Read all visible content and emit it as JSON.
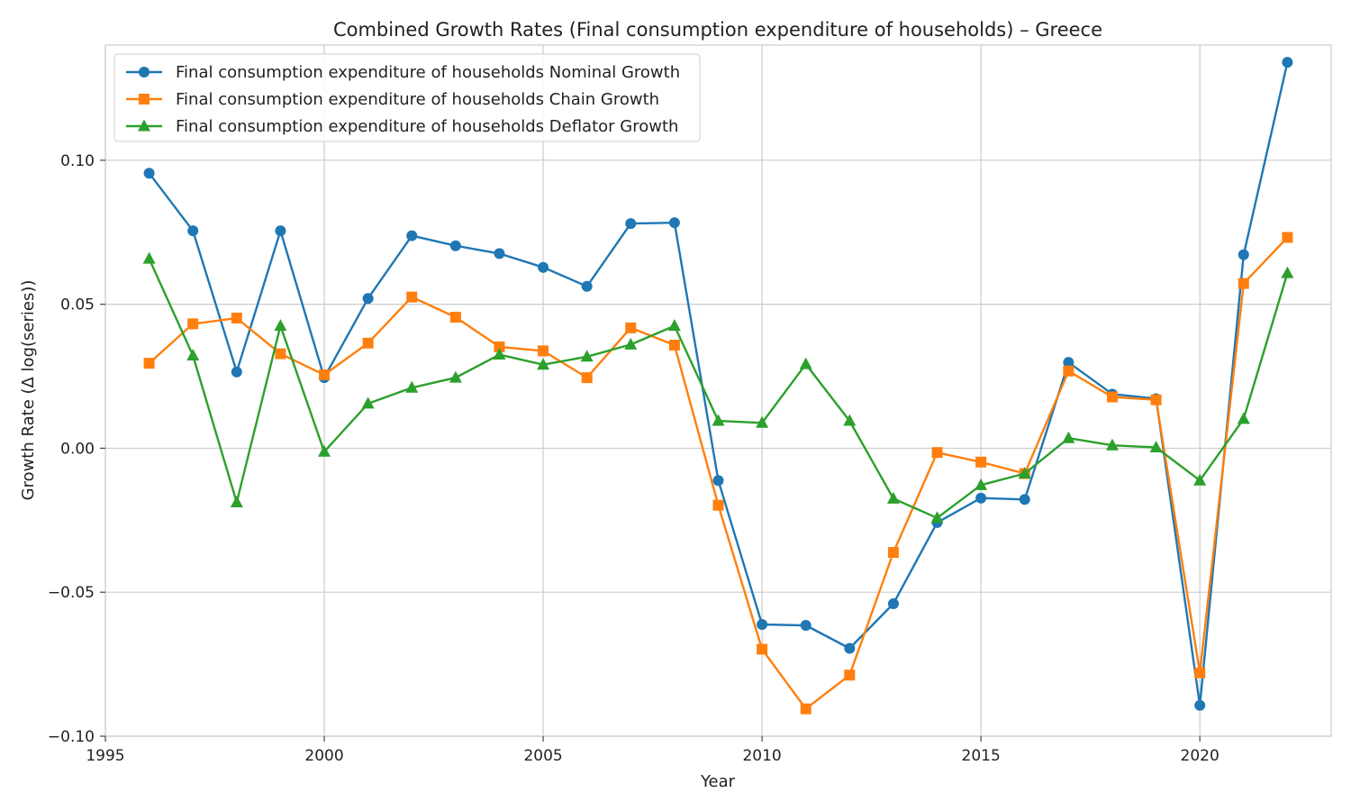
{
  "chart_data": {
    "type": "line",
    "title": "Combined Growth Rates (Final consumption expenditure of households) – Greece",
    "xlabel": "Year",
    "ylabel": "Growth Rate (Δ log(series))",
    "xlim": [
      1995,
      2023
    ],
    "ylim": [
      -0.1,
      0.14
    ],
    "grid": true,
    "legend_position": "top-left",
    "x_ticks": [
      1995,
      2000,
      2005,
      2010,
      2015,
      2020
    ],
    "x_tick_labels": [
      "1995",
      "2000",
      "2005",
      "2010",
      "2015",
      "2020"
    ],
    "y_ticks": [
      -0.1,
      -0.05,
      0.0,
      0.05,
      0.1
    ],
    "y_tick_labels": [
      "−0.10",
      "−0.05",
      "0.00",
      "0.05",
      "0.10"
    ],
    "x": [
      1996,
      1997,
      1998,
      1999,
      2000,
      2001,
      2002,
      2003,
      2004,
      2005,
      2006,
      2007,
      2008,
      2009,
      2010,
      2011,
      2012,
      2013,
      2014,
      2015,
      2016,
      2017,
      2018,
      2019,
      2020,
      2021,
      2022
    ],
    "series": [
      {
        "name": "Final consumption expenditure of households Nominal Growth",
        "color": "#1f77b4",
        "marker": "circle",
        "values": [
          0.0955,
          0.0755,
          0.0265,
          0.0755,
          0.0245,
          0.052,
          0.0738,
          0.0703,
          0.0676,
          0.0628,
          0.0562,
          0.078,
          0.0783,
          -0.0112,
          -0.0612,
          -0.0615,
          -0.0695,
          -0.054,
          -0.0258,
          -0.0173,
          -0.0178,
          0.0298,
          0.0188,
          0.0172,
          -0.0893,
          0.0672,
          0.134
        ]
      },
      {
        "name": "Final consumption expenditure of households Chain Growth",
        "color": "#ff7f0e",
        "marker": "square",
        "values": [
          0.0295,
          0.0432,
          0.0452,
          0.0328,
          0.0255,
          0.0365,
          0.0525,
          0.0455,
          0.0352,
          0.0338,
          0.0245,
          0.0418,
          0.0358,
          -0.0198,
          -0.0698,
          -0.0905,
          -0.0788,
          -0.0362,
          -0.0015,
          -0.0048,
          -0.0088,
          0.0268,
          0.0178,
          0.0168,
          -0.078,
          0.0572,
          0.0732
        ]
      },
      {
        "name": "Final consumption expenditure of households Deflator Growth",
        "color": "#2ca02c",
        "marker": "triangle",
        "values": [
          0.0658,
          0.0322,
          -0.0188,
          0.0425,
          -0.0012,
          0.0155,
          0.021,
          0.0245,
          0.0325,
          0.029,
          0.0318,
          0.036,
          0.0425,
          0.0095,
          0.0088,
          0.0292,
          0.0095,
          -0.0175,
          -0.0242,
          -0.0128,
          -0.0088,
          0.0035,
          0.001,
          0.0003,
          -0.0112,
          0.0102,
          0.0608
        ]
      }
    ]
  }
}
